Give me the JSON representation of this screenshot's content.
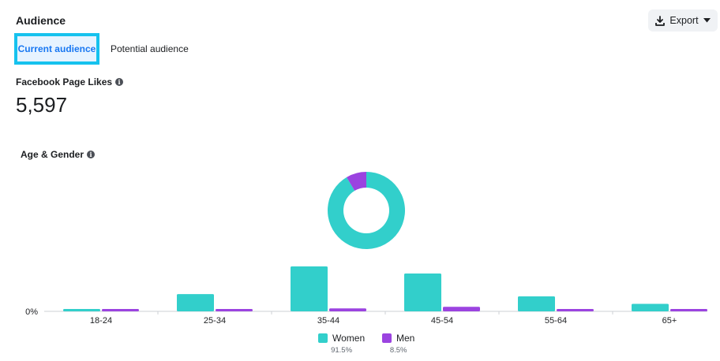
{
  "header": {
    "title": "Audience"
  },
  "export": {
    "label": "Export",
    "icon": "download-icon"
  },
  "tabs": {
    "current": "Current audience",
    "potential": "Potential audience"
  },
  "page_likes": {
    "label": "Facebook Page Likes",
    "value": "5,597"
  },
  "age_gender": {
    "label": "Age & Gender"
  },
  "colors": {
    "women": "#32cfcb",
    "men": "#9b43e0",
    "accent": "#1877f2",
    "highlight": "#16c2ee"
  },
  "chart_data": [
    {
      "type": "pie",
      "donut": true,
      "labels": [
        "Women",
        "Men"
      ],
      "values": [
        91.5,
        8.5
      ]
    },
    {
      "type": "bar",
      "categories": [
        "18-24",
        "25-34",
        "35-44",
        "45-54",
        "55-64",
        "65+"
      ],
      "series": [
        {
          "name": "Women",
          "values": [
            0.6,
            4.6,
            12.0,
            10.1,
            4.0,
            2.0
          ]
        },
        {
          "name": "Men",
          "values": [
            0.6,
            0.6,
            0.8,
            1.2,
            0.6,
            0.6
          ]
        }
      ],
      "ytick_label": "0%"
    }
  ],
  "legend": [
    {
      "name": "Women",
      "pct": "91.5%"
    },
    {
      "name": "Men",
      "pct": "8.5%"
    }
  ]
}
